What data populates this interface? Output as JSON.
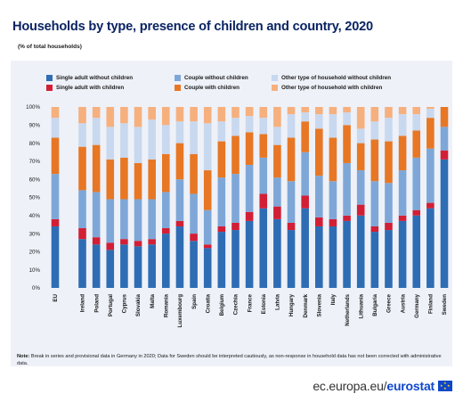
{
  "title": "Households by type, presence of children and country, 2020",
  "subtitle": "(% of total households)",
  "note_label": "Note:",
  "note_text": "Break in series and provisional data in Germany in 2020; Data for Sweden should be interpreted cautiously, as non-response in household data has not been corrected with administrative data.",
  "footer": {
    "url": "ec.europa.eu/",
    "brand": "eurostat"
  },
  "chart_data": {
    "type": "bar",
    "stacked": true,
    "ylim": [
      0,
      100
    ],
    "yticks": [
      "0%",
      "10%",
      "20%",
      "30%",
      "40%",
      "50%",
      "60%",
      "70%",
      "80%",
      "90%",
      "100%"
    ],
    "grid": false,
    "legend_position": "top",
    "categories": [
      "EU",
      "Ireland",
      "Poland",
      "Portugal",
      "Cyprus",
      "Slovakia",
      "Malta",
      "Romania",
      "Luxembourg",
      "Spain",
      "Croatia",
      "Belgium",
      "Czechia",
      "France",
      "Estonia",
      "Latvia",
      "Hungary",
      "Denmark",
      "Slovenia",
      "Italy",
      "Netherlands",
      "Lithuania",
      "Bulgaria",
      "Greece",
      "Austria",
      "Germany",
      "Finland",
      "Sweden"
    ],
    "series": [
      {
        "name": "Single adult without children",
        "color": "#2e6db4",
        "values": [
          34,
          27,
          24,
          21,
          24,
          23,
          24,
          30,
          34,
          26,
          22,
          31,
          32,
          37,
          44,
          38,
          32,
          44,
          34,
          34,
          37,
          40,
          31,
          32,
          37,
          40,
          44,
          71
        ]
      },
      {
        "name": "Single adult with children",
        "color": "#d21f35",
        "values": [
          4,
          6,
          4,
          4,
          3,
          3,
          3,
          3,
          3,
          4,
          2,
          3,
          4,
          5,
          8,
          7,
          4,
          7,
          5,
          4,
          3,
          6,
          3,
          4,
          3,
          3,
          3,
          5
        ]
      },
      {
        "name": "Couple without children",
        "color": "#7ea7d8",
        "values": [
          25,
          21,
          25,
          24,
          22,
          23,
          22,
          20,
          23,
          22,
          19,
          27,
          27,
          26,
          20,
          16,
          23,
          24,
          23,
          21,
          29,
          19,
          25,
          22,
          25,
          29,
          30,
          13
        ]
      },
      {
        "name": "Couple with children",
        "color": "#e77724",
        "values": [
          20,
          24,
          26,
          22,
          23,
          20,
          22,
          21,
          20,
          22,
          22,
          20,
          21,
          18,
          13,
          18,
          24,
          17,
          26,
          24,
          21,
          15,
          23,
          23,
          19,
          15,
          17,
          11
        ]
      },
      {
        "name": "Other type of household without children",
        "color": "#c8d8ef",
        "values": [
          11,
          13,
          15,
          18,
          19,
          20,
          22,
          16,
          12,
          18,
          26,
          11,
          10,
          9,
          9,
          10,
          13,
          5,
          8,
          13,
          7,
          8,
          10,
          13,
          12,
          9,
          5,
          0
        ]
      },
      {
        "name": "Other type of household with children",
        "color": "#f6b07e",
        "values": [
          6,
          9,
          6,
          11,
          9,
          11,
          7,
          10,
          8,
          8,
          9,
          8,
          6,
          5,
          6,
          11,
          4,
          3,
          4,
          4,
          3,
          12,
          8,
          6,
          4,
          4,
          1,
          0
        ]
      }
    ]
  }
}
